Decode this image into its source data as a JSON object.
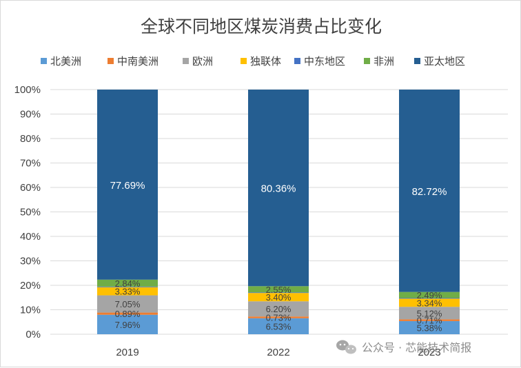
{
  "chart_data": {
    "type": "bar",
    "stacked": "percent",
    "title": "全球不同地区煤炭消费占比变化",
    "categories": [
      "2019",
      "2022",
      "2023"
    ],
    "ylim": [
      0,
      100
    ],
    "y_ticks": [
      "0%",
      "10%",
      "20%",
      "30%",
      "40%",
      "50%",
      "60%",
      "70%",
      "80%",
      "90%",
      "100%"
    ],
    "legend_position": "top",
    "grid": true,
    "series": [
      {
        "name": "北美洲",
        "color": "#5b9bd5",
        "values": [
          7.96,
          6.53,
          5.38
        ],
        "labels": [
          "7.96%",
          "6.53%",
          "5.38%"
        ]
      },
      {
        "name": "中南美洲",
        "color": "#ed7d31",
        "values": [
          0.89,
          0.73,
          0.71
        ],
        "labels": [
          "0.89%",
          "0.73%",
          "0.71%"
        ]
      },
      {
        "name": "欧洲",
        "color": "#a5a5a5",
        "values": [
          7.05,
          6.2,
          5.12
        ],
        "labels": [
          "7.05%",
          "6.20%",
          "5.12%"
        ]
      },
      {
        "name": "独联体",
        "color": "#ffc000",
        "values": [
          3.33,
          3.4,
          3.34
        ],
        "labels": [
          "3.33%",
          "3.40%",
          "3.34%"
        ]
      },
      {
        "name": "中东地区",
        "color": "#4472c4",
        "values": [
          0.24,
          0.23,
          0.24
        ],
        "labels": [
          "",
          "",
          ""
        ]
      },
      {
        "name": "非洲",
        "color": "#70ad47",
        "values": [
          2.84,
          2.55,
          2.49
        ],
        "labels": [
          "2.84%",
          "2.55%",
          "2.49%"
        ]
      },
      {
        "name": "亚太地区",
        "color": "#255e91",
        "values": [
          77.69,
          80.36,
          82.72
        ],
        "labels": [
          "77.69%",
          "80.36%",
          "82.72%"
        ]
      }
    ]
  },
  "watermark": {
    "icon": "wechat-icon",
    "text": "公众号 · 芯能技术简报"
  }
}
